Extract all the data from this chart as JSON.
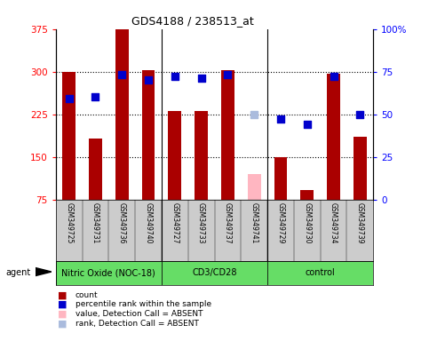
{
  "title": "GDS4188 / 238513_at",
  "samples": [
    "GSM349725",
    "GSM349731",
    "GSM349736",
    "GSM349740",
    "GSM349727",
    "GSM349733",
    "GSM349737",
    "GSM349741",
    "GSM349729",
    "GSM349730",
    "GSM349734",
    "GSM349739"
  ],
  "bar_values": [
    300,
    183,
    375,
    302,
    230,
    230,
    302,
    null,
    150,
    92,
    296,
    185
  ],
  "bar_absent": [
    null,
    null,
    null,
    null,
    null,
    null,
    null,
    120,
    null,
    null,
    null,
    null
  ],
  "rank_values": [
    59,
    60,
    73,
    70,
    72,
    71,
    73,
    null,
    47,
    44,
    72,
    50
  ],
  "rank_absent": [
    null,
    null,
    null,
    null,
    null,
    null,
    null,
    50,
    null,
    null,
    null,
    null
  ],
  "groups": [
    {
      "label": "Nitric Oxide (NOC-18)",
      "start": 0,
      "end": 4
    },
    {
      "label": "CD3/CD28",
      "start": 4,
      "end": 8
    },
    {
      "label": "control",
      "start": 8,
      "end": 12
    }
  ],
  "ylim_left": [
    75,
    375
  ],
  "ylim_right": [
    0,
    100
  ],
  "yticks_left": [
    75,
    150,
    225,
    300,
    375
  ],
  "yticks_right": [
    0,
    25,
    50,
    75,
    100
  ],
  "ytick_labels_left": [
    "75",
    "150",
    "225",
    "300",
    "375"
  ],
  "ytick_labels_right": [
    "0",
    "25",
    "50",
    "75",
    "100%"
  ],
  "bar_color": "#AA0000",
  "bar_absent_color": "#FFB6C1",
  "rank_color": "#0000CC",
  "rank_absent_color": "#AABBDD",
  "bg_color": "#FFFFFF",
  "sample_area_color": "#CCCCCC",
  "group_label_area_color": "#66DD66",
  "bar_width": 0.5,
  "rank_marker_size": 40,
  "legend_items": [
    {
      "color": "#AA0000",
      "label": "count"
    },
    {
      "color": "#0000CC",
      "label": "percentile rank within the sample"
    },
    {
      "color": "#FFB6C1",
      "label": "value, Detection Call = ABSENT"
    },
    {
      "color": "#AABBDD",
      "label": "rank, Detection Call = ABSENT"
    }
  ]
}
